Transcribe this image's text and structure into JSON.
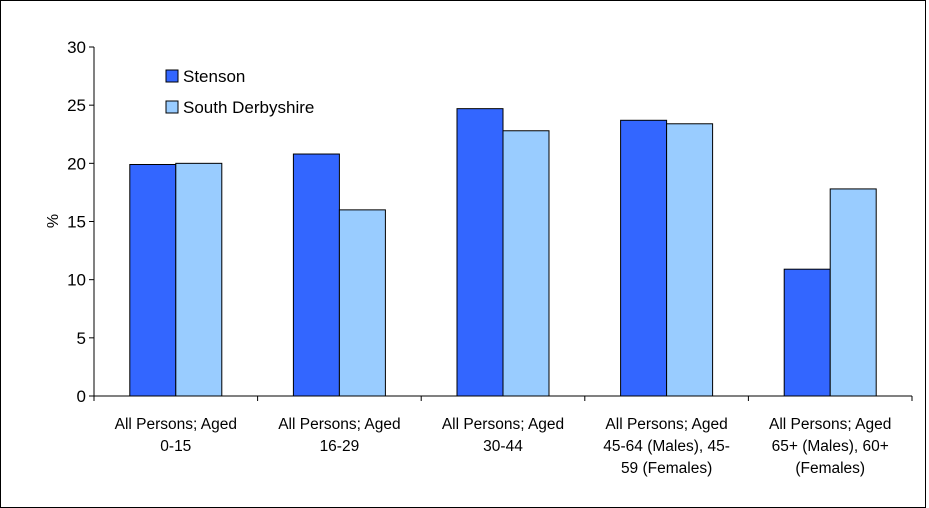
{
  "chart_data": {
    "type": "bar",
    "title": "",
    "xlabel": "",
    "ylabel": "%",
    "ylim": [
      0,
      30
    ],
    "yticks": [
      "0",
      "5",
      "10",
      "15",
      "20",
      "25",
      "30"
    ],
    "categories": [
      [
        "All Persons; Aged",
        "0-15"
      ],
      [
        "All Persons; Aged",
        "16-29"
      ],
      [
        "All Persons; Aged",
        "30-44"
      ],
      [
        "All Persons; Aged",
        "45-64 (Males), 45-",
        "59 (Females)"
      ],
      [
        "All Persons; Aged",
        "65+ (Males), 60+",
        "(Females)"
      ]
    ],
    "series": [
      {
        "name": "Stenson",
        "color": "#3366ff",
        "values": [
          19.9,
          20.8,
          24.7,
          23.7,
          10.9
        ]
      },
      {
        "name": "South Derbyshire",
        "color": "#99ccff",
        "values": [
          20.0,
          16.0,
          22.8,
          23.4,
          17.8
        ]
      }
    ],
    "legend": "top-left",
    "grid": false
  }
}
